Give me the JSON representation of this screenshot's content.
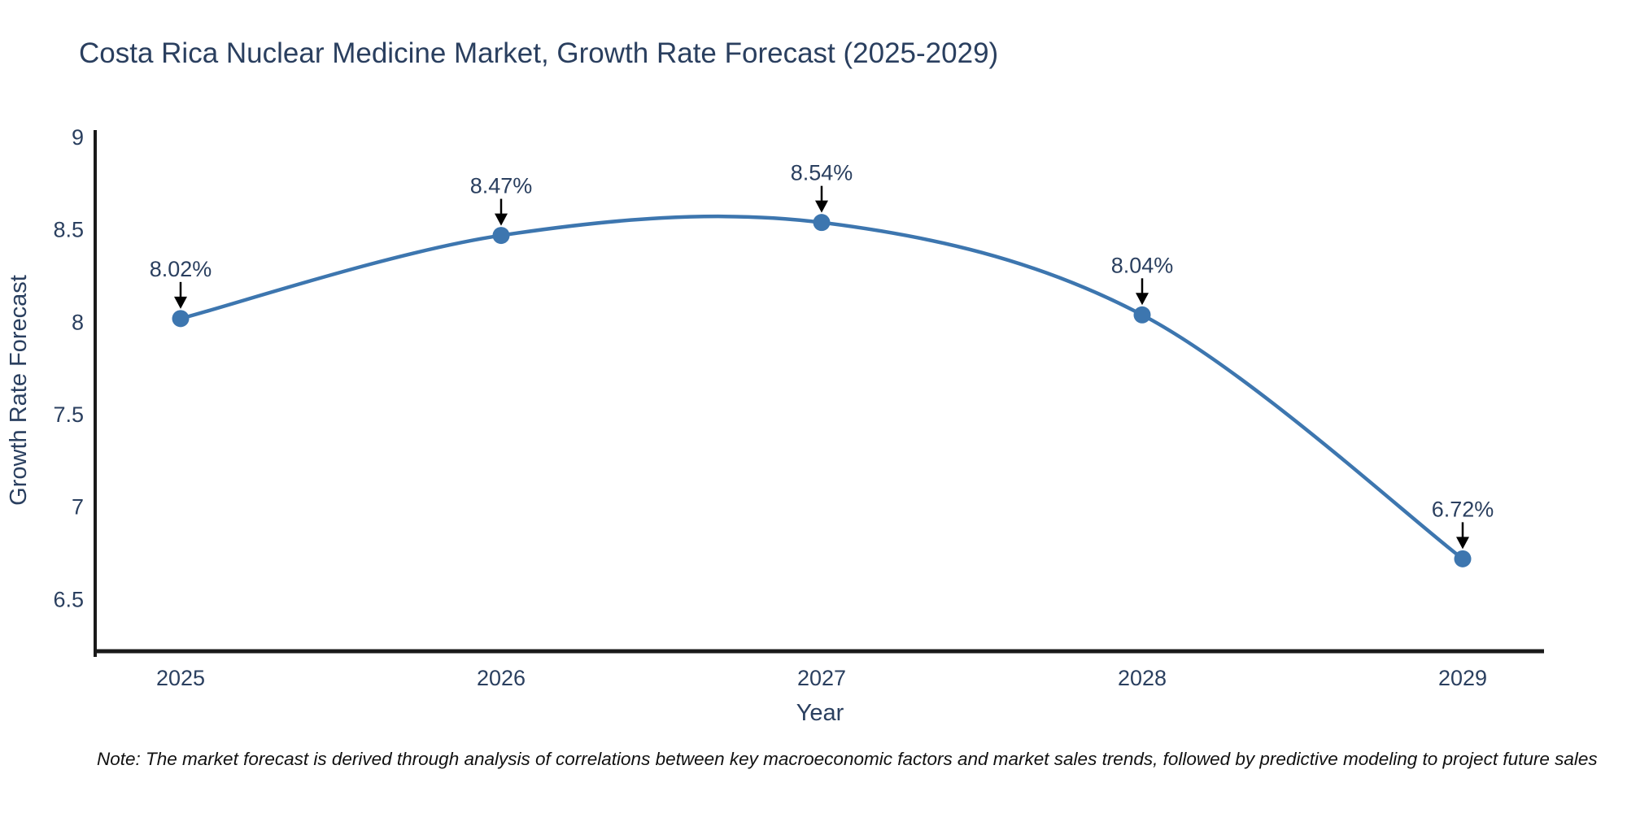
{
  "chart_data": {
    "type": "line",
    "title": "Costa Rica Nuclear Medicine Market, Growth Rate Forecast (2025-2029)",
    "xlabel": "Year",
    "ylabel": "Growth Rate Forecast",
    "categories": [
      "2025",
      "2026",
      "2027",
      "2028",
      "2029"
    ],
    "series": [
      {
        "name": "Growth Rate Forecast",
        "values": [
          8.02,
          8.47,
          8.54,
          8.04,
          6.72
        ],
        "point_labels": [
          "8.02%",
          "8.47%",
          "8.54%",
          "8.04%",
          "6.72%"
        ]
      }
    ],
    "yticks": [
      6.5,
      7,
      7.5,
      8,
      8.5,
      9
    ],
    "ylim": [
      6.22,
      9.04
    ],
    "grid": false,
    "legend": false,
    "smooth_spline": true,
    "line_color": "#3d76af",
    "marker_color": "#3d76af",
    "axis_color": "#1a1a1a",
    "text_color": "#2a3f5f",
    "annotation_arrow_color": "#000000"
  },
  "note": {
    "text": "Note: The market forecast is derived through analysis of correlations between key macroeconomic factors and market sales trends, followed by predictive modeling to project future sales"
  }
}
